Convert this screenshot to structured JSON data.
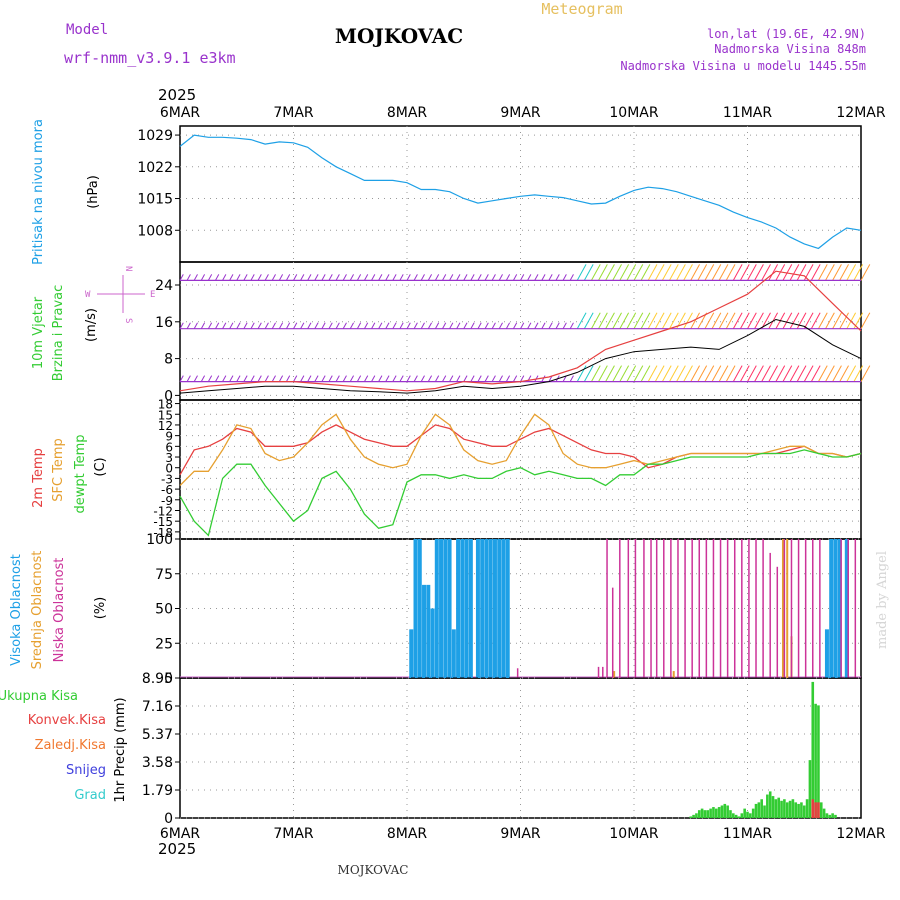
{
  "header": {
    "model_label": "Model",
    "model_name": "wrf-nmm_v3.9.1 e3km",
    "station_title": "MOJKOVAC",
    "meteogram_label": "Meteogram",
    "lonlat": "lon,lat (19.6E, 42.9N)",
    "elevation": "Nadmorska Visina 848m",
    "model_elevation": "Nadmorska Visina u modelu 1445.55m"
  },
  "footer": {
    "station": "MOJKOVAC",
    "credit": "made by Angel"
  },
  "time_axis": {
    "year": "2025",
    "days": [
      "6MAR",
      "7MAR",
      "8MAR",
      "9MAR",
      "10MAR",
      "11MAR",
      "12MAR"
    ]
  },
  "colors": {
    "pressure": "#1ea0e6",
    "wind": "#33cc33",
    "wind_dir": "#cc66cc",
    "temp2m": "#e64040",
    "sfc": "#e6a030",
    "dewpt": "#33cc33",
    "cloud_high": "#1ea0e6",
    "cloud_mid": "#e6a030",
    "cloud_low": "#cc3399",
    "precip_total": "#33cc33",
    "precip_conv": "#e64040",
    "precip_frz": "#f07830",
    "snow": "#4040dd",
    "hail": "#33cccc",
    "header_purple": "#9933cc",
    "meteogram": "#e6c060"
  },
  "chart_data": [
    {
      "id": "pressure",
      "type": "line",
      "title": "Pritisak na nivou mora",
      "ylabel": "(hPa)",
      "ylim": [
        1001,
        1031
      ],
      "yticks": [
        "1029",
        "1022",
        "1015",
        "1008"
      ],
      "x": [
        0,
        1,
        2,
        3,
        4,
        5,
        6,
        7,
        8,
        9,
        10,
        11,
        12,
        13,
        14,
        15,
        16,
        17,
        18,
        19,
        20,
        21,
        22,
        23,
        24,
        25,
        26,
        27,
        28,
        29,
        30,
        31,
        32,
        33,
        34,
        35,
        36,
        37,
        38,
        39,
        40,
        41,
        42,
        43,
        44,
        45,
        46,
        47,
        48
      ],
      "values": [
        1026.5,
        1029.0,
        1028.5,
        1028.5,
        1028.3,
        1028.0,
        1027.0,
        1027.5,
        1027.3,
        1026.3,
        1024.0,
        1022.0,
        1020.5,
        1019.0,
        1019.0,
        1019.0,
        1018.5,
        1017.0,
        1017.0,
        1016.5,
        1015.0,
        1014.0,
        1014.5,
        1015.0,
        1015.5,
        1015.8,
        1015.5,
        1015.2,
        1014.5,
        1013.8,
        1014.0,
        1015.5,
        1016.8,
        1017.5,
        1017.2,
        1016.5,
        1015.5,
        1014.5,
        1013.5,
        1012.0,
        1010.8,
        1009.8,
        1008.5,
        1006.5,
        1005.0,
        1004.0,
        1006.5,
        1008.5,
        1008.0
      ]
    },
    {
      "id": "wind",
      "type": "line",
      "title": "10m Vjetar",
      "subtitle": "Brzina i Pravac",
      "ylabel": "(m/s)",
      "ylim": [
        -1,
        29
      ],
      "yticks": [
        "24",
        "16",
        "8",
        "0"
      ],
      "direction_key": [
        "N",
        "E",
        "S",
        "W"
      ],
      "x": [
        0,
        2,
        4,
        6,
        8,
        10,
        12,
        14,
        16,
        18,
        20,
        22,
        24,
        26,
        28,
        30,
        32,
        34,
        36,
        38,
        40,
        42,
        44,
        46,
        48
      ],
      "speed": [
        0.5,
        1,
        1.5,
        2,
        2,
        1.5,
        1,
        0.8,
        0.5,
        1,
        2,
        1.5,
        2,
        3,
        5,
        8,
        9.5,
        10,
        10.5,
        10,
        13,
        16.5,
        15,
        11,
        8
      ],
      "gust": [
        1,
        2,
        2.5,
        3,
        3,
        2.5,
        2,
        1.5,
        1,
        1.5,
        3,
        2.5,
        3,
        4,
        6,
        10,
        12,
        14,
        16,
        19,
        22,
        27,
        26,
        20,
        14
      ],
      "base_level": [
        1,
        1,
        1,
        1,
        1,
        1,
        1,
        1,
        1,
        1,
        1,
        1,
        1,
        1,
        1,
        1,
        1,
        1,
        1,
        1,
        1,
        1,
        1,
        1,
        1
      ],
      "barb_rows": [
        3,
        14.5,
        25
      ]
    },
    {
      "id": "temperature",
      "type": "line",
      "ylabel": "(C)",
      "series_labels": [
        "2m Temp",
        "SFC Temp",
        "dewpt Temp"
      ],
      "ylim": [
        -20,
        19
      ],
      "yticks": [
        "18",
        "15",
        "12",
        "9",
        "6",
        "3",
        "0",
        "-3",
        "-6",
        "-9",
        "-12",
        "-15",
        "-18"
      ],
      "x": [
        0,
        1,
        2,
        3,
        4,
        5,
        6,
        7,
        8,
        9,
        10,
        11,
        12,
        13,
        14,
        15,
        16,
        17,
        18,
        19,
        20,
        21,
        22,
        23,
        24,
        25,
        26,
        27,
        28,
        29,
        30,
        31,
        32,
        33,
        34,
        35,
        36,
        37,
        38,
        39,
        40,
        41,
        42,
        43,
        44,
        45,
        46,
        47,
        48
      ],
      "t2m": [
        -2,
        5,
        6,
        8,
        11,
        10,
        6,
        6,
        6,
        7,
        10,
        12,
        10,
        8,
        7,
        6,
        6,
        9,
        12,
        11,
        8,
        7,
        6,
        6,
        8,
        10,
        11,
        9,
        7,
        5,
        4,
        4,
        3,
        0,
        1,
        3,
        4,
        4,
        4,
        4,
        4,
        4,
        4,
        5,
        6,
        4,
        4,
        3,
        4
      ],
      "sfc": [
        -5,
        -1,
        -1,
        5,
        12,
        11,
        4,
        2,
        3,
        7,
        12,
        15,
        8,
        3,
        1,
        0,
        1,
        9,
        15,
        12,
        5,
        2,
        1,
        2,
        9,
        15,
        12,
        4,
        1,
        0,
        0,
        1,
        2,
        1,
        2,
        3,
        4,
        4,
        4,
        4,
        4,
        4,
        5,
        6,
        6,
        4,
        4,
        3,
        4
      ],
      "dewpt": [
        -8,
        -15,
        -19,
        -3,
        1,
        1,
        -5,
        -10,
        -15,
        -12,
        -3,
        -1,
        -6,
        -13,
        -17,
        -16,
        -4,
        -2,
        -2,
        -3,
        -2,
        -3,
        -3,
        -1,
        0,
        -2,
        -1,
        -2,
        -3,
        -3,
        -5,
        -2,
        -2,
        1,
        1,
        2,
        3,
        3,
        3,
        3,
        3,
        4,
        4,
        4,
        5,
        4,
        3,
        3,
        4
      ]
    },
    {
      "id": "clouds",
      "type": "bar",
      "ylabel": "(%)",
      "series_labels": [
        "Visoka Oblacnost",
        "Srednja Oblacnost",
        "Niska Oblacnost"
      ],
      "ylim": [
        0,
        100
      ],
      "yticks": [
        "100",
        "75",
        "50",
        "25",
        "0"
      ],
      "high": {
        "x": [
          16.3,
          16.6,
          16.9,
          17.2,
          17.5,
          17.8,
          18.1,
          18.4,
          18.7,
          19.0,
          19.3,
          19.6,
          19.9,
          20.2,
          20.5,
          21.0,
          21.3,
          21.6,
          21.9,
          22.2,
          22.5,
          22.8,
          23.1,
          45.6,
          45.9,
          46.2,
          46.5,
          47.0
        ],
        "values": [
          35,
          100,
          100,
          67,
          67,
          50,
          100,
          100,
          100,
          100,
          35,
          100,
          100,
          100,
          100,
          100,
          100,
          100,
          100,
          100,
          100,
          100,
          100,
          35,
          100,
          100,
          100,
          100
        ]
      },
      "mid": {
        "x": [
          30.6,
          34.8,
          42.5,
          42.8,
          43.1
        ],
        "values": [
          5,
          5,
          100,
          100,
          30
        ]
      },
      "low": {
        "x": [
          23.8,
          29.5,
          29.8,
          30.1,
          30.5,
          31.0,
          31.6,
          32.1,
          32.7,
          33.2,
          33.6,
          34.1,
          34.6,
          35.1,
          35.6,
          36.1,
          36.6,
          37.1,
          37.6,
          38.1,
          38.6,
          39.1,
          39.6,
          40.1,
          40.6,
          41.1,
          41.6,
          42.1,
          42.6,
          43.1,
          43.6,
          44.1,
          44.6,
          45.1,
          46.6,
          47.1,
          47.6
        ],
        "values": [
          7,
          8,
          8,
          100,
          65,
          100,
          100,
          100,
          100,
          100,
          100,
          100,
          100,
          100,
          100,
          100,
          100,
          100,
          100,
          100,
          100,
          100,
          100,
          100,
          100,
          100,
          90,
          80,
          100,
          100,
          100,
          100,
          100,
          100,
          100,
          100,
          100
        ]
      }
    },
    {
      "id": "precip",
      "type": "bar",
      "ylabel": "1hr Precip (mm)",
      "series_labels": [
        "Ukupna Kisa",
        "Konvek.Kisa",
        "Zaledj.Kisa",
        "Snijeg",
        "Grad"
      ],
      "ylim": [
        0,
        8.95
      ],
      "yticks": [
        "8.95",
        "7.16",
        "5.37",
        "3.58",
        "1.79",
        "0"
      ],
      "total": {
        "x": [
          36.0,
          36.2,
          36.4,
          36.6,
          36.8,
          37.0,
          37.2,
          37.4,
          37.6,
          37.8,
          38.0,
          38.2,
          38.4,
          38.6,
          38.8,
          39.0,
          39.2,
          39.4,
          39.6,
          39.8,
          40.0,
          40.2,
          40.4,
          40.6,
          40.8,
          41.0,
          41.2,
          41.4,
          41.6,
          41.8,
          42.0,
          42.2,
          42.4,
          42.6,
          42.8,
          43.0,
          43.2,
          43.4,
          43.6,
          43.8,
          44.0,
          44.2,
          44.4,
          44.6,
          44.8,
          45.0,
          45.2,
          45.4,
          45.6,
          45.8,
          46.0,
          46.2
        ],
        "values": [
          0.1,
          0.2,
          0.3,
          0.5,
          0.6,
          0.5,
          0.5,
          0.6,
          0.7,
          0.6,
          0.7,
          0.8,
          0.9,
          0.8,
          0.5,
          0.3,
          0.2,
          0.1,
          0.3,
          0.6,
          0.4,
          0.3,
          0.6,
          0.9,
          1.0,
          1.2,
          0.8,
          1.5,
          1.7,
          1.4,
          1.2,
          1.3,
          1.1,
          1.2,
          1.0,
          1.1,
          1.2,
          1.0,
          0.9,
          1.0,
          0.8,
          1.2,
          3.7,
          8.7,
          7.3,
          7.2,
          1.0,
          0.6,
          0.3,
          0.2,
          0.3,
          0.2
        ]
      },
      "conv": {
        "x": [
          44.6,
          44.8,
          45.0
        ],
        "values": [
          1.2,
          1.0,
          1.0
        ]
      }
    }
  ]
}
